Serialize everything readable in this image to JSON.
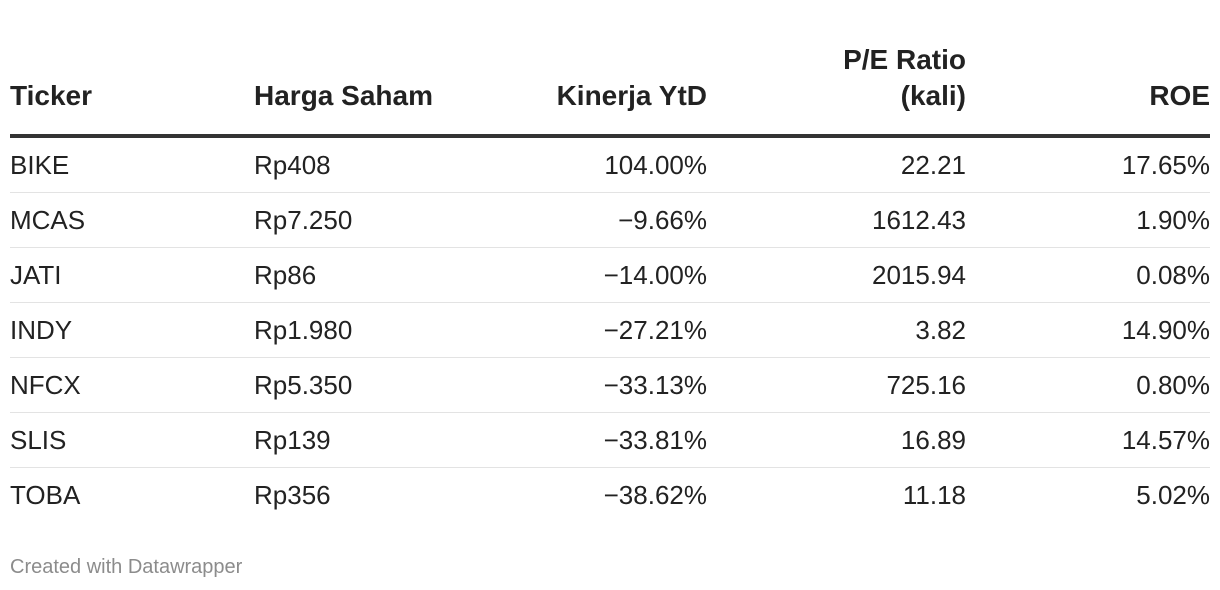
{
  "chart_data": {
    "type": "table",
    "columns": [
      "Ticker",
      "Harga Saham",
      "Kinerja YtD",
      "P/E Ratio\n(kali)",
      "ROE"
    ],
    "rows": [
      [
        "BIKE",
        "Rp408",
        "104.00%",
        "22.21",
        "17.65%"
      ],
      [
        "MCAS",
        "Rp7.250",
        "−9.66%",
        "1612.43",
        "1.90%"
      ],
      [
        "JATI",
        "Rp86",
        "−14.00%",
        "2015.94",
        "0.08%"
      ],
      [
        "INDY",
        "Rp1.980",
        "−27.21%",
        "3.82",
        "14.90%"
      ],
      [
        "NFCX",
        "Rp5.350",
        "−33.13%",
        "725.16",
        "0.80%"
      ],
      [
        "SLIS",
        "Rp139",
        "−33.81%",
        "16.89",
        "14.57%"
      ],
      [
        "TOBA",
        "Rp356",
        "−38.62%",
        "11.18",
        "5.02%"
      ]
    ],
    "column_align": [
      "left",
      "left",
      "right",
      "right",
      "right"
    ]
  },
  "footer": {
    "credit": "Created with Datawrapper"
  }
}
